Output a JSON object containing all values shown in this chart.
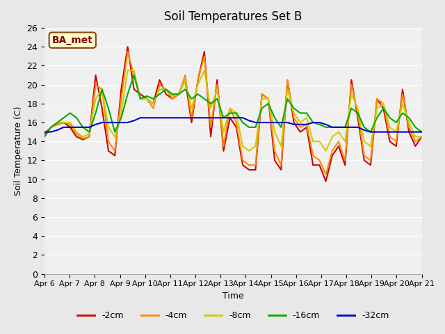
{
  "title": "Soil Temperatures Set B",
  "xlabel": "Time",
  "ylabel": "Soil Temperature (C)",
  "annotation": "BA_met",
  "bg_color": "#e8e8e8",
  "plot_bg_color": "#f0f0f0",
  "ylim": [
    0,
    26
  ],
  "yticks": [
    0,
    2,
    4,
    6,
    8,
    10,
    12,
    14,
    16,
    18,
    20,
    22,
    24,
    26
  ],
  "x_labels": [
    "Apr 6",
    "Apr 7",
    "Apr 8",
    "Apr 9",
    "Apr 10",
    "Apr 11",
    "Apr 12",
    "Apr 13",
    "Apr 14",
    "Apr 15",
    "Apr 16",
    "Apr 17",
    "Apr 18",
    "Apr 19",
    "Apr 20",
    "Apr 21"
  ],
  "series": {
    "-2cm": {
      "color": "#cc0000",
      "lw": 1.5
    },
    "-4cm": {
      "color": "#ff8800",
      "lw": 1.5
    },
    "-8cm": {
      "color": "#cccc00",
      "lw": 1.5
    },
    "-16cm": {
      "color": "#00aa00",
      "lw": 1.5
    },
    "-32cm": {
      "color": "#0000cc",
      "lw": 1.5
    }
  },
  "data_2cm": [
    14.8,
    15.5,
    15.8,
    16.0,
    15.5,
    14.5,
    14.2,
    14.5,
    21.0,
    17.5,
    13.0,
    12.5,
    19.5,
    24.0,
    19.5,
    19.0,
    18.5,
    18.0,
    20.5,
    19.0,
    18.5,
    19.0,
    20.5,
    16.0,
    20.5,
    23.5,
    14.5,
    20.5,
    13.0,
    16.5,
    15.5,
    11.5,
    11.0,
    11.0,
    19.0,
    18.5,
    12.0,
    11.0,
    20.5,
    16.0,
    15.0,
    15.5,
    11.5,
    11.5,
    9.8,
    12.5,
    13.5,
    11.5,
    20.5,
    16.5,
    12.0,
    11.5,
    18.5,
    17.5,
    14.0,
    13.5,
    19.5,
    15.0,
    13.5,
    14.5
  ],
  "data_4cm": [
    14.5,
    15.5,
    15.8,
    16.0,
    15.8,
    14.8,
    14.3,
    14.5,
    20.0,
    19.5,
    14.0,
    13.0,
    18.5,
    23.5,
    21.0,
    18.5,
    18.5,
    17.5,
    20.0,
    19.5,
    18.5,
    19.0,
    21.0,
    16.5,
    20.5,
    23.0,
    15.5,
    20.0,
    13.5,
    17.5,
    16.0,
    12.0,
    11.5,
    11.5,
    19.0,
    18.5,
    13.0,
    11.5,
    20.5,
    16.5,
    15.5,
    15.8,
    12.5,
    12.0,
    10.5,
    13.0,
    14.0,
    12.0,
    20.0,
    17.0,
    12.5,
    12.0,
    18.5,
    18.0,
    14.5,
    14.0,
    19.0,
    15.5,
    14.0,
    14.5
  ],
  "data_8cm": [
    14.5,
    15.5,
    16.0,
    16.0,
    16.0,
    15.0,
    14.5,
    14.8,
    18.5,
    19.5,
    15.5,
    14.5,
    17.0,
    21.5,
    21.5,
    18.5,
    18.5,
    18.0,
    19.5,
    19.5,
    18.8,
    19.0,
    20.5,
    17.5,
    20.0,
    21.5,
    17.5,
    19.5,
    15.0,
    17.5,
    17.0,
    13.5,
    13.0,
    13.5,
    18.5,
    18.5,
    15.0,
    13.5,
    19.5,
    17.0,
    16.0,
    16.5,
    14.0,
    14.0,
    13.0,
    14.5,
    15.0,
    14.0,
    19.0,
    17.5,
    14.0,
    13.5,
    17.5,
    18.0,
    15.5,
    15.0,
    18.0,
    16.0,
    14.5,
    14.5
  ],
  "data_16cm": [
    14.5,
    15.5,
    16.0,
    16.5,
    17.0,
    16.5,
    15.5,
    15.0,
    17.0,
    19.5,
    17.5,
    15.0,
    16.5,
    19.0,
    21.0,
    18.5,
    18.8,
    18.5,
    19.0,
    19.5,
    19.0,
    19.0,
    19.5,
    18.5,
    19.0,
    18.5,
    18.0,
    18.5,
    16.5,
    17.0,
    17.0,
    16.0,
    15.5,
    15.5,
    17.5,
    18.0,
    16.5,
    15.5,
    18.5,
    17.5,
    17.0,
    17.0,
    16.0,
    15.8,
    15.5,
    15.5,
    15.5,
    15.5,
    17.5,
    17.0,
    15.5,
    15.0,
    16.5,
    17.5,
    16.5,
    16.0,
    17.0,
    16.5,
    15.5,
    15.0
  ],
  "data_32cm": [
    15.0,
    15.0,
    15.2,
    15.5,
    15.5,
    15.5,
    15.5,
    15.5,
    15.8,
    16.0,
    16.0,
    16.0,
    16.0,
    16.0,
    16.2,
    16.5,
    16.5,
    16.5,
    16.5,
    16.5,
    16.5,
    16.5,
    16.5,
    16.5,
    16.5,
    16.5,
    16.5,
    16.5,
    16.5,
    16.5,
    16.5,
    16.5,
    16.2,
    16.0,
    16.0,
    16.0,
    16.0,
    16.0,
    16.0,
    15.8,
    15.8,
    15.8,
    16.0,
    16.0,
    15.8,
    15.5,
    15.5,
    15.5,
    15.5,
    15.5,
    15.2,
    15.0,
    15.0,
    15.0,
    15.0,
    15.0,
    15.0,
    15.0,
    15.0,
    15.0
  ]
}
